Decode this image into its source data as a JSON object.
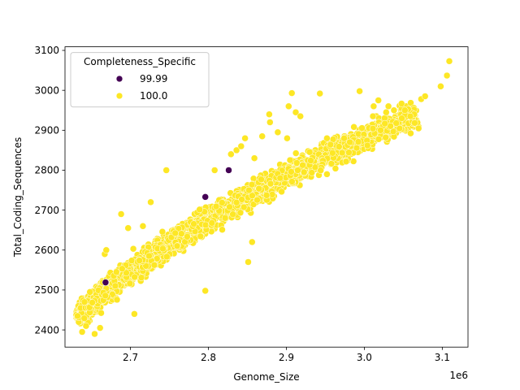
{
  "chart_data": {
    "type": "scatter",
    "title": "",
    "xlabel": "Genome_Size",
    "ylabel": "Total_Coding_Sequences",
    "x_offset_text": "1e6",
    "x_scale": 1000000,
    "xlim": [
      2.616,
      3.133
    ],
    "ylim": [
      2357,
      3109
    ],
    "x_ticks": [
      2.7,
      2.8,
      2.9,
      3.0,
      3.1
    ],
    "x_tick_labels": [
      "2.7",
      "2.8",
      "2.9",
      "3.0",
      "3.1"
    ],
    "y_ticks": [
      2400,
      2500,
      2600,
      2700,
      2800,
      2900,
      3000,
      3100
    ],
    "y_tick_labels": [
      "2400",
      "2500",
      "2600",
      "2700",
      "2800",
      "2900",
      "3000",
      "3100"
    ],
    "grid": false,
    "legend": {
      "title": "Completeness_Specific",
      "placement": "top-left",
      "entries": [
        {
          "label": "99.99",
          "color": "#440154"
        },
        {
          "label": "100.0",
          "color": "#fde725"
        }
      ]
    },
    "main_cloud": {
      "series": "100.0",
      "color": "#fde725",
      "trend_points": [
        [
          2.63,
          2435
        ],
        [
          2.7,
          2545
        ],
        [
          2.8,
          2680
        ],
        [
          2.9,
          2785
        ],
        [
          3.0,
          2880
        ],
        [
          3.06,
          2935
        ]
      ],
      "x_range": [
        2.63,
        3.07
      ],
      "spread": 45
    },
    "series": [
      {
        "name": "99.99",
        "color": "#440154",
        "points": [
          [
            2.668,
            2519
          ],
          [
            2.796,
            2733
          ],
          [
            2.826,
            2800
          ]
        ]
      },
      {
        "name": "100.0",
        "color": "#fde725",
        "points": [
          [
            2.632,
            2435
          ],
          [
            2.638,
            2395
          ],
          [
            2.643,
            2410
          ],
          [
            2.641,
            2470
          ],
          [
            2.648,
            2495
          ],
          [
            2.654,
            2390
          ],
          [
            2.661,
            2405
          ],
          [
            2.667,
            2590
          ],
          [
            2.669,
            2600
          ],
          [
            2.682,
            2545
          ],
          [
            2.688,
            2690
          ],
          [
            2.697,
            2655
          ],
          [
            2.705,
            2440
          ],
          [
            2.716,
            2660
          ],
          [
            2.726,
            2720
          ],
          [
            2.746,
            2800
          ],
          [
            2.796,
            2498
          ],
          [
            2.808,
            2800
          ],
          [
            2.829,
            2840
          ],
          [
            2.836,
            2850
          ],
          [
            2.842,
            2860
          ],
          [
            2.847,
            2880
          ],
          [
            2.851,
            2570
          ],
          [
            2.856,
            2620
          ],
          [
            2.859,
            2830
          ],
          [
            2.869,
            2885
          ],
          [
            2.878,
            2940
          ],
          [
            2.879,
            2920
          ],
          [
            2.889,
            2895
          ],
          [
            2.901,
            2880
          ],
          [
            2.903,
            2960
          ],
          [
            2.907,
            2993
          ],
          [
            2.912,
            2945
          ],
          [
            2.918,
            2935
          ],
          [
            2.943,
            2992
          ],
          [
            2.952,
            2880
          ],
          [
            2.974,
            2880
          ],
          [
            2.994,
            2998
          ],
          [
            3.011,
            2935
          ],
          [
            3.012,
            2960
          ],
          [
            3.018,
            2975
          ],
          [
            3.021,
            2900
          ],
          [
            3.028,
            2945
          ],
          [
            3.031,
            2960
          ],
          [
            3.038,
            2950
          ],
          [
            3.052,
            2950
          ],
          [
            3.064,
            2940
          ],
          [
            3.073,
            2978
          ],
          [
            3.078,
            2985
          ],
          [
            3.098,
            3010
          ],
          [
            3.106,
            3037
          ],
          [
            3.109,
            3073
          ],
          [
            3.059,
            2935
          ],
          [
            3.048,
            2930
          ],
          [
            2.952,
            2790
          ]
        ]
      }
    ]
  }
}
